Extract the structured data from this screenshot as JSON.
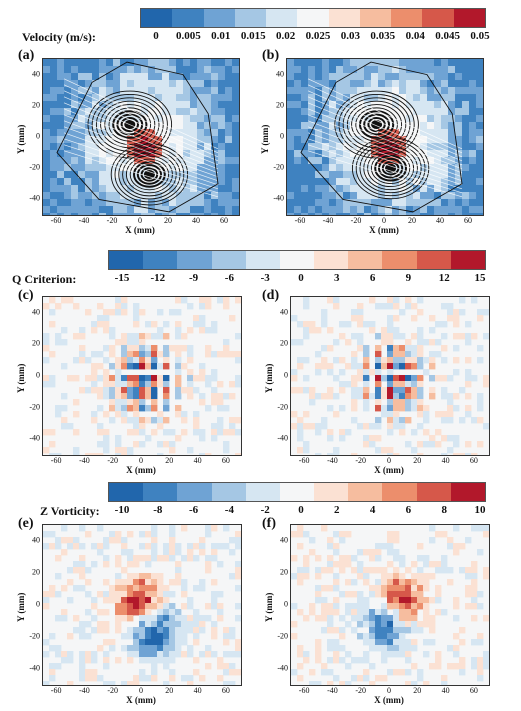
{
  "colors": {
    "scale": [
      "#2166ac",
      "#3f82c0",
      "#6fa3d4",
      "#a5c7e4",
      "#d6e6f2",
      "#f5f6f7",
      "#fbe1d3",
      "#f6bd9f",
      "#ec8e6c",
      "#d6584a",
      "#b2182b"
    ]
  },
  "colorbars": [
    {
      "title": "Velocity (m/s):",
      "ticks": [
        "0",
        "0.005",
        "0.01",
        "0.015",
        "0.02",
        "0.025",
        "0.03",
        "0.035",
        "0.04",
        "0.045",
        "0.05"
      ]
    },
    {
      "title": "Q Criterion:",
      "ticks": [
        "-15",
        "-12",
        "-9",
        "-6",
        "-3",
        "0",
        "3",
        "6",
        "9",
        "12",
        "15"
      ]
    },
    {
      "title": "Z Vorticity:",
      "ticks": [
        "-10",
        "-8",
        "-6",
        "-4",
        "-2",
        "0",
        "2",
        "4",
        "6",
        "8",
        "10"
      ]
    }
  ],
  "chart_data": [
    {
      "type": "heatmap",
      "panel": "(a)",
      "field": "velocity",
      "xlabel": "X (mm)",
      "ylabel": "Y (mm)",
      "xticks": [
        "-60",
        "-40",
        "-20",
        "0",
        "20",
        "40",
        "60"
      ],
      "yticks": [
        "40",
        "20",
        "0",
        "-20",
        "-40"
      ],
      "xlim": [
        -70,
        70
      ],
      "ylim": [
        -50,
        50
      ],
      "streamlines": true,
      "vortex_centers": [
        {
          "x": -8,
          "y": 8
        },
        {
          "x": 6,
          "y": -24
        }
      ]
    },
    {
      "type": "heatmap",
      "panel": "(b)",
      "field": "velocity",
      "xlabel": "X (mm)",
      "ylabel": "Y (mm)",
      "xticks": [
        "-60",
        "-40",
        "-20",
        "0",
        "20",
        "40",
        "60"
      ],
      "yticks": [
        "40",
        "20",
        "0",
        "-20",
        "-40"
      ],
      "xlim": [
        -70,
        70
      ],
      "ylim": [
        -50,
        50
      ],
      "streamlines": true,
      "vortex_centers": [
        {
          "x": -6,
          "y": 8
        },
        {
          "x": 4,
          "y": -20
        }
      ]
    },
    {
      "type": "heatmap",
      "panel": "(c)",
      "field": "q_criterion",
      "xlabel": "X (mm)",
      "ylabel": "Y (mm)",
      "xticks": [
        "-60",
        "-40",
        "-20",
        "0",
        "20",
        "40",
        "60"
      ],
      "yticks": [
        "40",
        "20",
        "0",
        "-20",
        "-40"
      ],
      "xlim": [
        -70,
        70
      ],
      "ylim": [
        -50,
        50
      ]
    },
    {
      "type": "heatmap",
      "panel": "(d)",
      "field": "q_criterion",
      "xlabel": "X (mm)",
      "ylabel": "Y (mm)",
      "xticks": [
        "-60",
        "-40",
        "-20",
        "0",
        "20",
        "40",
        "60"
      ],
      "yticks": [
        "40",
        "20",
        "0",
        "-20",
        "-40"
      ],
      "xlim": [
        -70,
        70
      ],
      "ylim": [
        -50,
        50
      ]
    },
    {
      "type": "heatmap",
      "panel": "(e)",
      "field": "z_vorticity",
      "xlabel": "X (mm)",
      "ylabel": "Y (mm)",
      "xticks": [
        "-60",
        "-40",
        "-20",
        "0",
        "20",
        "40",
        "60"
      ],
      "yticks": [
        "40",
        "20",
        "0",
        "-20",
        "-40"
      ],
      "xlim": [
        -70,
        70
      ],
      "ylim": [
        -50,
        50
      ]
    },
    {
      "type": "heatmap",
      "panel": "(f)",
      "field": "z_vorticity",
      "xlabel": "X (mm)",
      "ylabel": "Y (mm)",
      "xticks": [
        "-60",
        "-40",
        "-20",
        "0",
        "20",
        "40",
        "60"
      ],
      "yticks": [
        "40",
        "20",
        "0",
        "-20",
        "-40"
      ],
      "xlim": [
        -70,
        70
      ],
      "ylim": [
        -50,
        50
      ]
    }
  ]
}
